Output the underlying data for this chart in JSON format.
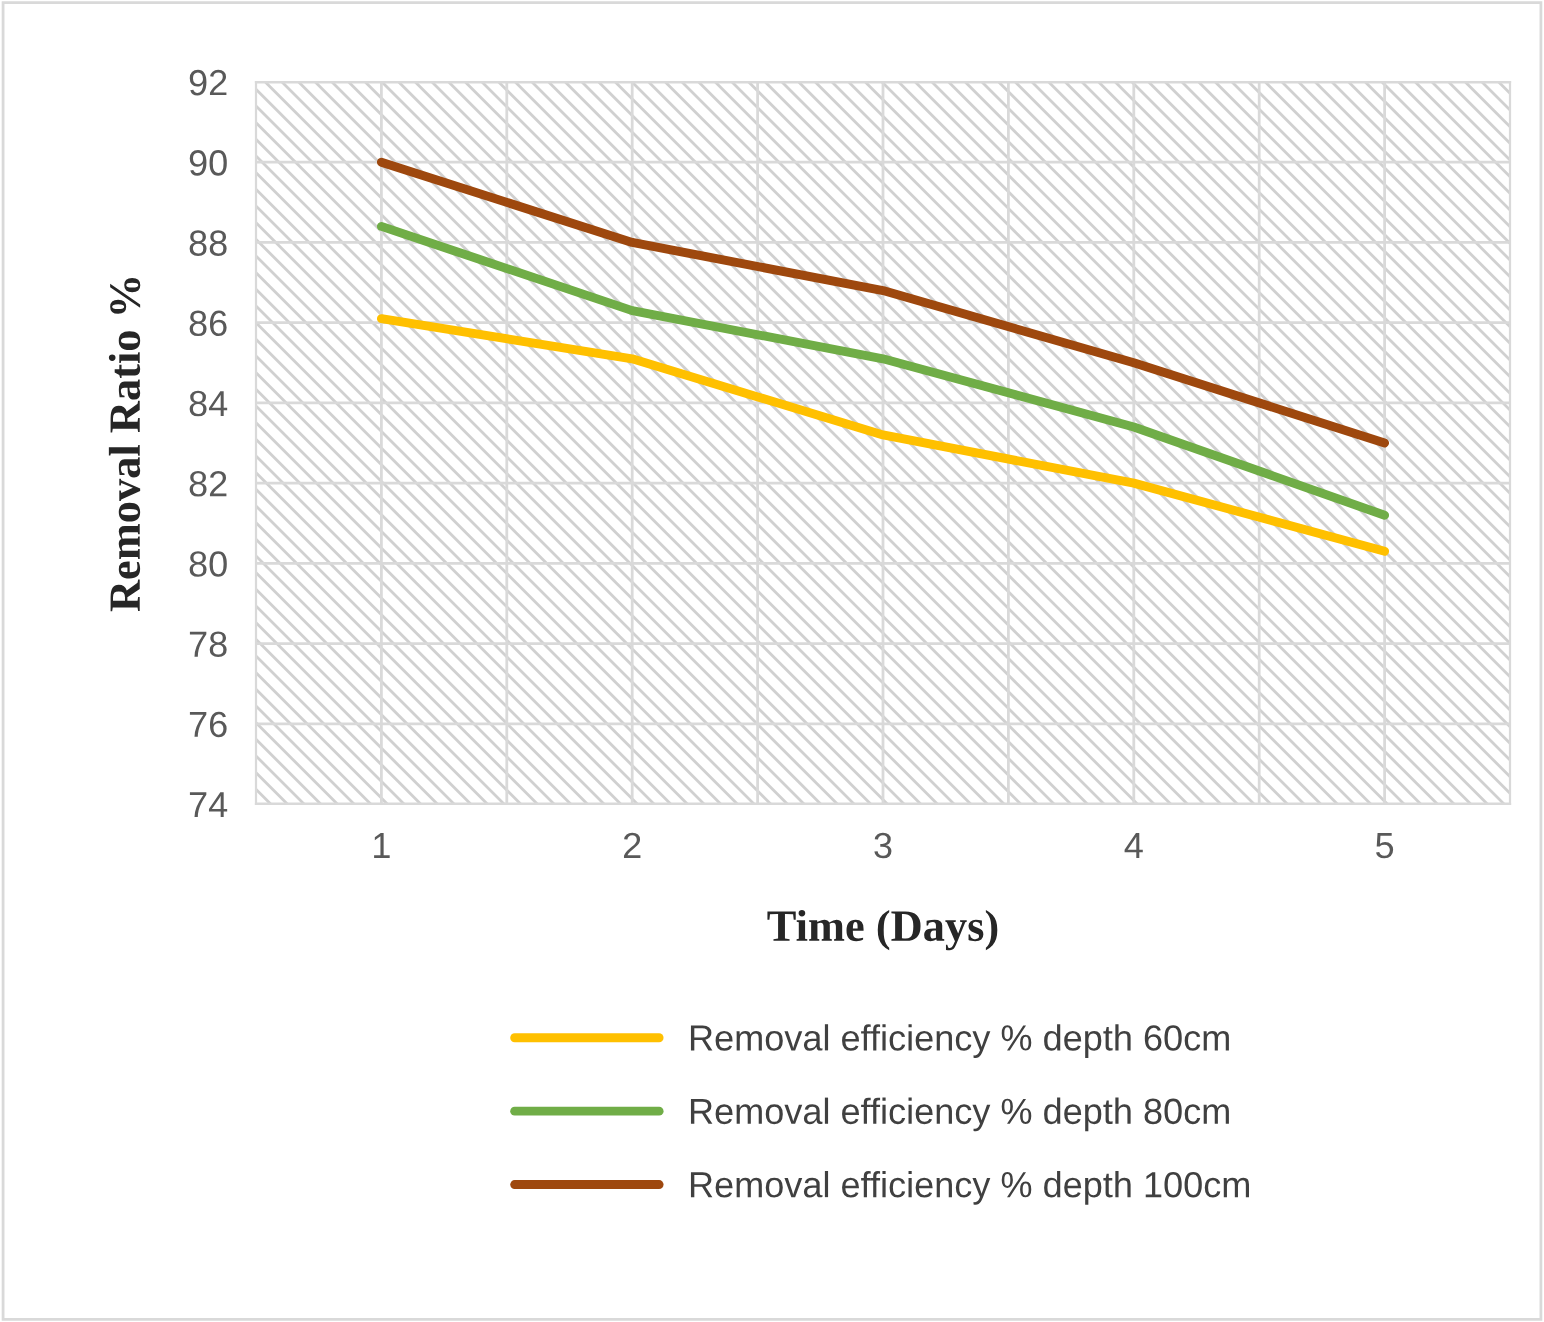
{
  "chart_data": {
    "type": "line",
    "xlabel": "Time (Days)",
    "ylabel": "Removal Ratio %",
    "categories": [
      "1",
      "2",
      "3",
      "4",
      "5"
    ],
    "series": [
      {
        "name": "Removal efficiency % depth 60cm",
        "color": "#ffc000",
        "values": [
          86.1,
          85.1,
          83.2,
          82.0,
          80.3
        ]
      },
      {
        "name": "Removal efficiency % depth 80cm",
        "color": "#70ad47",
        "values": [
          88.4,
          86.3,
          85.1,
          83.4,
          81.2
        ]
      },
      {
        "name": "Removal efficiency % depth 100cm",
        "color": "#9e480e",
        "values": [
          90.0,
          88.0,
          86.8,
          85.0,
          83.0
        ]
      }
    ],
    "ylim": [
      74,
      92
    ],
    "yticks": [
      74,
      76,
      78,
      80,
      82,
      84,
      86,
      88,
      90,
      92
    ],
    "grid": true,
    "legend": "bottom",
    "marker": "none",
    "line_style": "solid"
  }
}
